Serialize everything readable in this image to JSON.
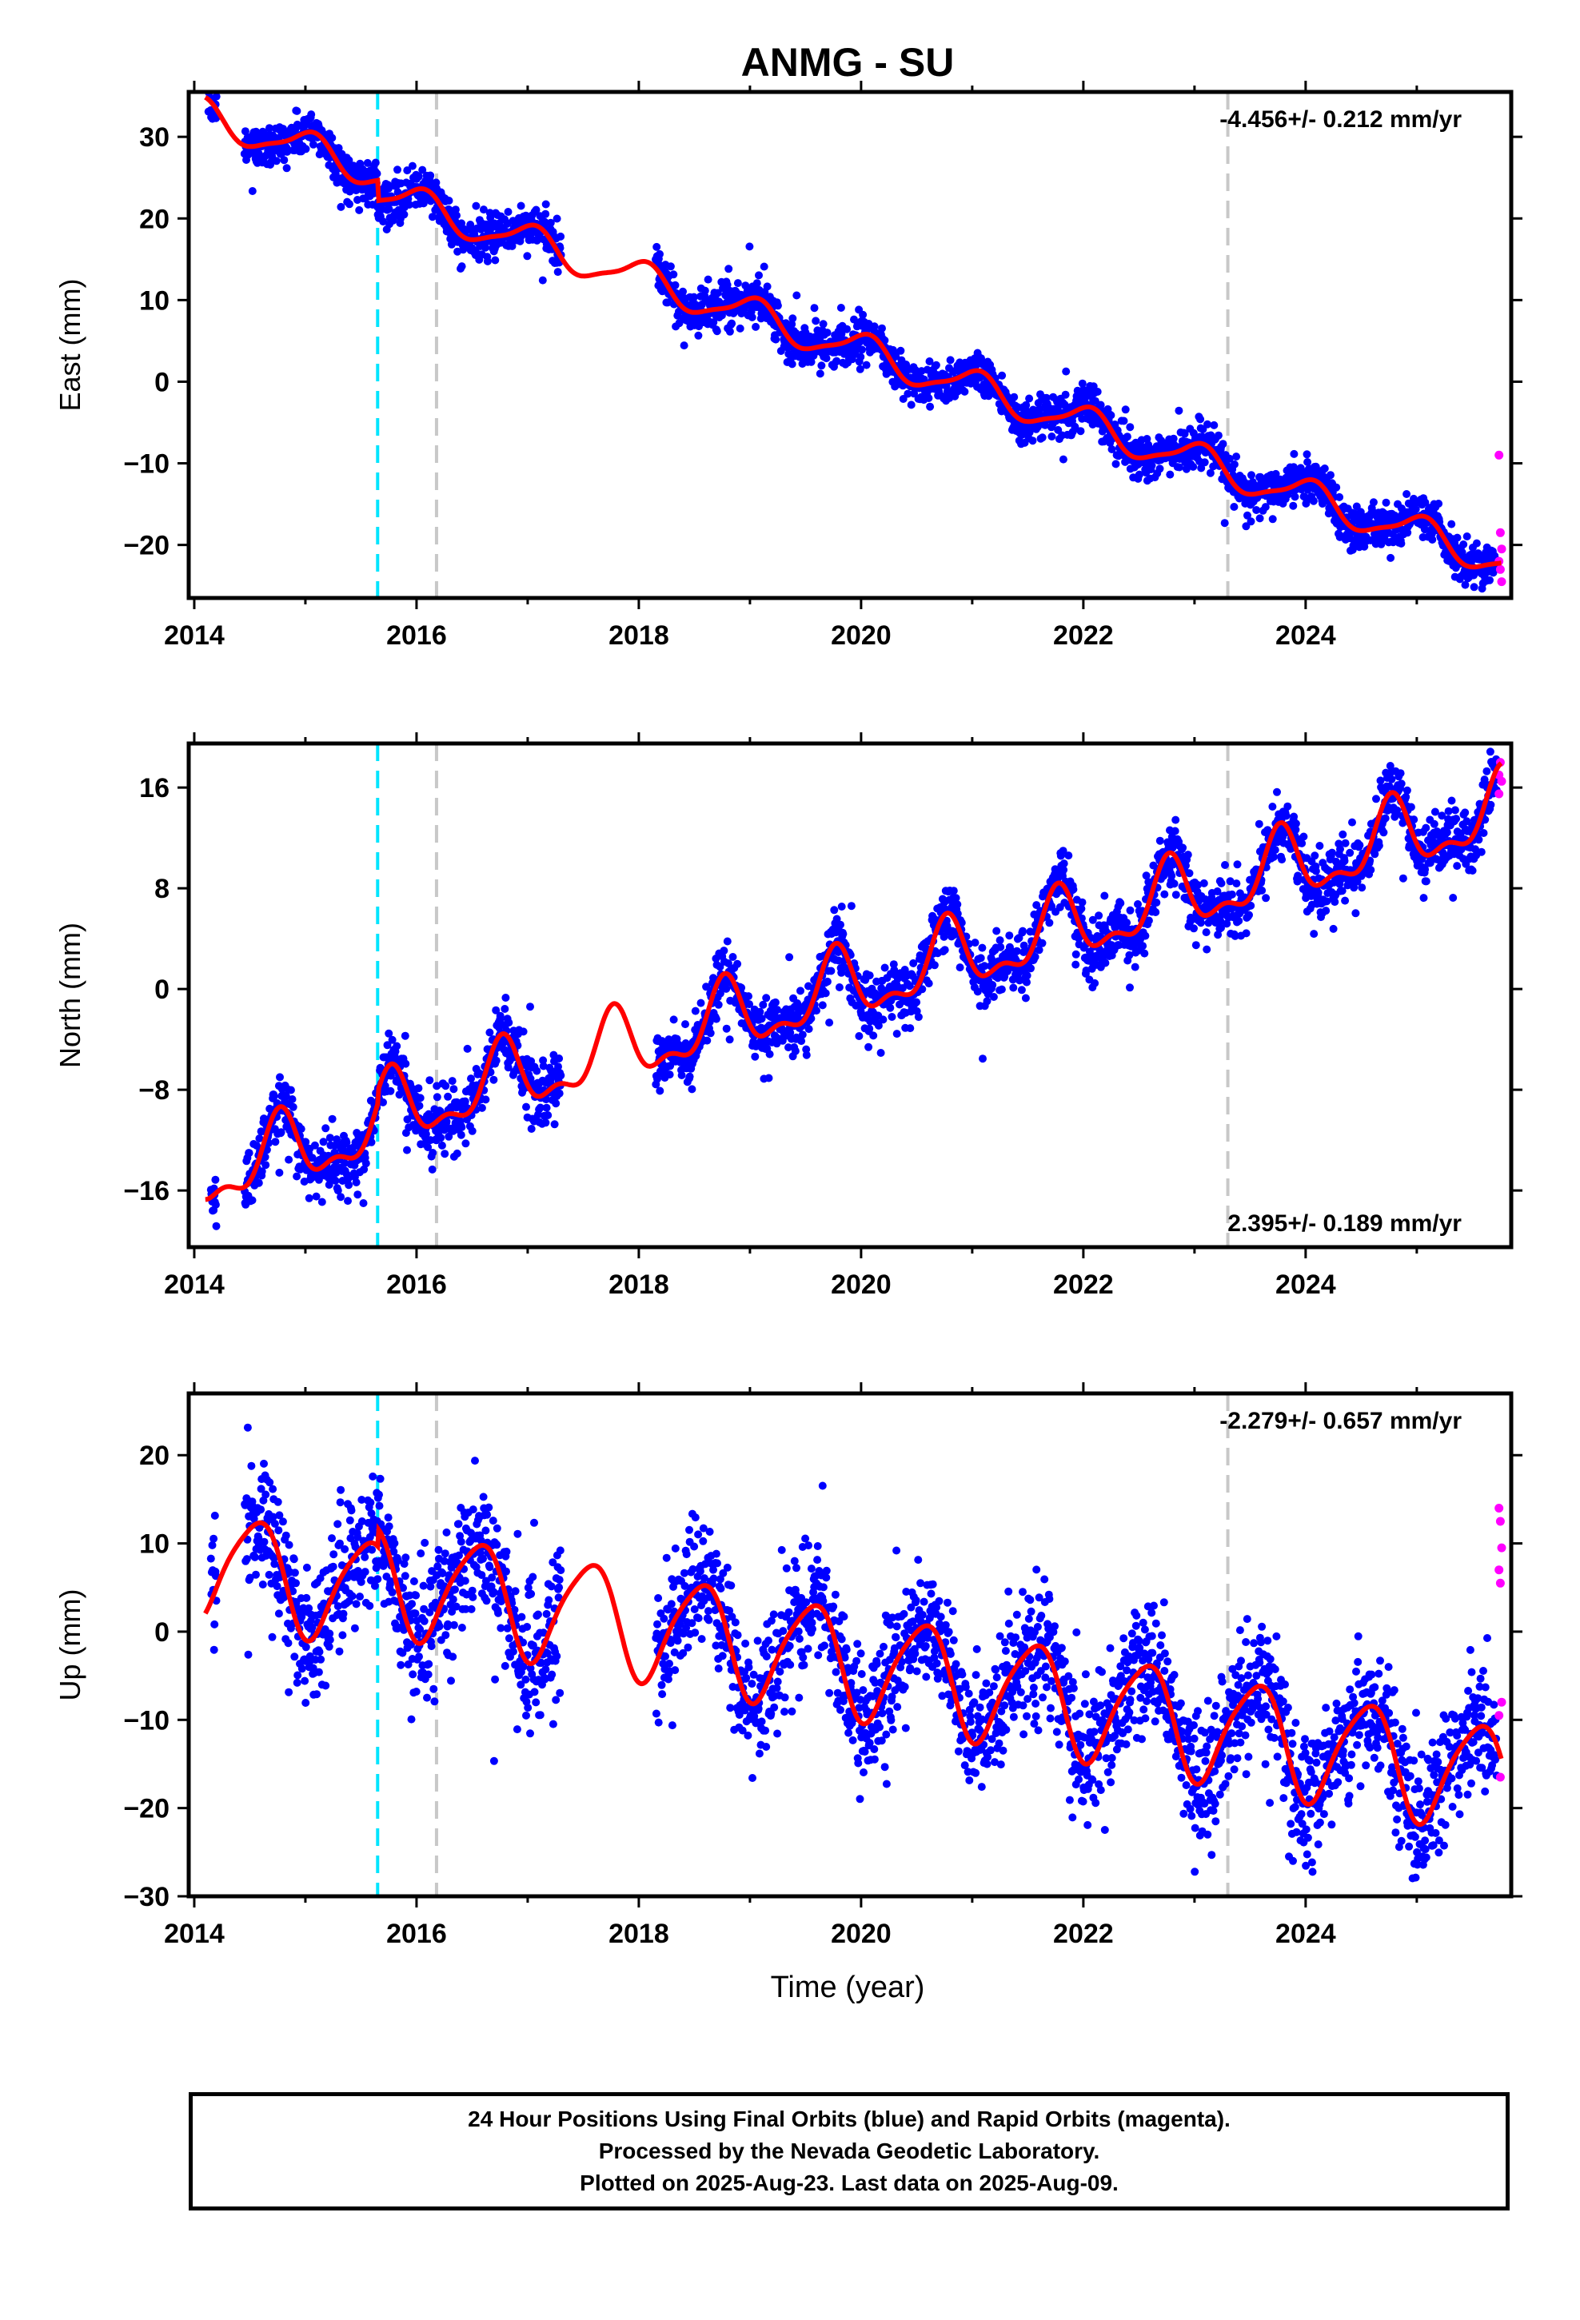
{
  "chart_data": {
    "title": "ANMG - SU",
    "type": "scatter",
    "x_label": "Time (year)",
    "x_range": [
      2013.95,
      2025.85
    ],
    "x_ticks": [
      "2014",
      "2016",
      "2018",
      "2020",
      "2022",
      "2024"
    ],
    "x_tick_values": [
      2014,
      2016,
      2018,
      2020,
      2022,
      2024
    ],
    "colors": {
      "final_orbits": "#0000ff",
      "rapid_orbits": "#ff00ff",
      "model_fit": "#ff0000",
      "event_line_cyan": "#00e5ff",
      "event_line_gray": "#c8c8c8"
    },
    "event_lines": [
      {
        "color": "cyan",
        "x": 2015.65,
        "style": "dashed"
      },
      {
        "color": "gray",
        "x": 2016.18,
        "style": "dashed"
      },
      {
        "color": "gray",
        "x": 2023.3,
        "style": "dashed"
      }
    ],
    "data_gap": [
      2017.3,
      2018.15
    ],
    "rapid_orbit_start": 2025.72,
    "panels": [
      {
        "name": "east",
        "ylabel": "East (mm)",
        "ylim": [
          -26.5,
          35.5
        ],
        "yticks": [
          -20,
          -10,
          0,
          10,
          20,
          30
        ],
        "velocity_label": "-4.456+/- 0.212 mm/yr",
        "velocity_position": "top-right",
        "trend": {
          "rate": -4.456,
          "offset_at_2014": 33.0
        },
        "seasonal": [
          {
            "amp": 2.0,
            "period": 1.0,
            "phase": 2014.78
          },
          {
            "amp": 0.5,
            "period": 0.5,
            "phase": 2014.5
          }
        ],
        "offsets": [
          {
            "x": 2015.65,
            "dy": -2.5
          }
        ],
        "scatter_noise": 1.3,
        "rapid_values": [
          -9,
          -18.5,
          -20.5,
          -22,
          -23,
          -24.5
        ]
      },
      {
        "name": "north",
        "ylabel": "North (mm)",
        "ylim": [
          -20.5,
          19.5
        ],
        "yticks": [
          -16,
          -8,
          0,
          8,
          16
        ],
        "velocity_label": "2.395+/- 0.189 mm/yr",
        "velocity_position": "bottom-right",
        "trend": {
          "rate": 2.395,
          "offset_at_2014": -15.0
        },
        "seasonal": [
          {
            "amp": 2.6,
            "period": 1.0,
            "phase": 2014.52
          },
          {
            "amp": 1.2,
            "period": 0.5,
            "phase": 2014.65
          }
        ],
        "offsets": [
          {
            "x": 2015.65,
            "dy": 1.0
          }
        ],
        "scatter_noise": 1.2,
        "rapid_values": [
          17,
          18,
          16.5,
          15.5
        ]
      },
      {
        "name": "up",
        "ylabel": "Up (mm)",
        "ylim": [
          -30,
          27
        ],
        "yticks": [
          -30,
          -20,
          -10,
          0,
          10,
          20
        ],
        "velocity_label": "-2.279+/- 0.657 mm/yr",
        "velocity_position": "top-right",
        "trend": {
          "rate": -2.279,
          "offset_at_2014": 8.0
        },
        "seasonal": [
          {
            "amp": 6.0,
            "period": 1.0,
            "phase": 2014.3
          },
          {
            "amp": 1.0,
            "period": 0.5,
            "phase": 2014.1
          }
        ],
        "offsets": [
          {
            "x": 2015.65,
            "dy": 2.0
          }
        ],
        "scatter_noise": 3.6,
        "rapid_values": [
          14,
          12.5,
          9.5,
          7,
          5.5,
          -8,
          -9.5,
          -16.5
        ]
      }
    ]
  },
  "caption": {
    "line1": "24 Hour Positions Using Final Orbits (blue) and Rapid Orbits (magenta).",
    "line2": "Processed by the Nevada Geodetic Laboratory.",
    "line3": "Plotted on 2025-Aug-23. Last data on 2025-Aug-09."
  }
}
